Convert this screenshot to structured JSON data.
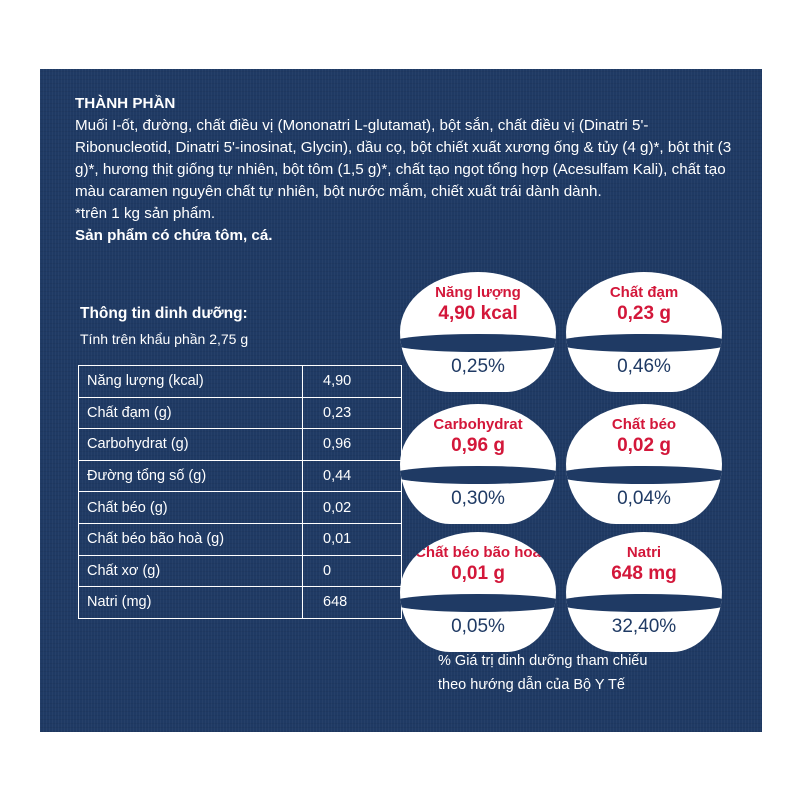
{
  "ingredients": {
    "title": "THÀNH PHẦN",
    "text": "Muối I-ốt, đường, chất điều vị (Mononatri L-glutamat), bột sắn, chất điều vị (Dinatri 5'-Ribonucleotid, Dinatri 5'-inosinat, Glycin), dầu cọ, bột chiết xuất xương ống & tủy (4 g)*, bột thịt (3 g)*, hương thịt giống tự nhiên, bột tôm (1,5 g)*, chất tạo ngọt tổng hợp (Acesulfam Kali), chất tạo màu caramen nguyên chất tự nhiên, bột nước mắm, chiết xuất trái dành dành.",
    "note": "*trên 1 kg sản phẩm.",
    "allergen": "Sản phẩm có chứa tôm, cá."
  },
  "nutrition": {
    "title": "Thông tin dinh dưỡng:",
    "subtitle": "Tính trên khẩu phần 2,75 g",
    "rows": [
      {
        "label": "Năng lượng (kcal)",
        "value": "4,90"
      },
      {
        "label": "Chất đạm (g)",
        "value": "0,23"
      },
      {
        "label": "Carbohydrat (g)",
        "value": "0,96"
      },
      {
        "label": "Đường tổng số (g)",
        "value": "0,44"
      },
      {
        "label": "Chất béo (g)",
        "value": "0,02"
      },
      {
        "label": "Chất béo bão hoà (g)",
        "value": "0,01"
      },
      {
        "label": "Chất xơ (g)",
        "value": "0"
      },
      {
        "label": "Natri (mg)",
        "value": "648"
      }
    ]
  },
  "daily_values": [
    {
      "label": "Năng lượng",
      "amount": "4,90 kcal",
      "percent": "0,25%"
    },
    {
      "label": "Chất đạm",
      "amount": "0,23 g",
      "percent": "0,46%"
    },
    {
      "label": "Carbohydrat",
      "amount": "0,96 g",
      "percent": "0,30%"
    },
    {
      "label": "Chất béo",
      "amount": "0,02 g",
      "percent": "0,04%"
    },
    {
      "label": "Chất béo bão hoà",
      "amount": "0,01 g",
      "percent": "0,05%"
    },
    {
      "label": "Natri",
      "amount": "648 mg",
      "percent": "32,40%"
    }
  ],
  "footnote": {
    "line1": "% Giá trị dinh dưỡng tham chiếu",
    "line2": "theo hướng dẫn của Bộ Y Tế"
  },
  "colors": {
    "panel": "#1f3a64",
    "accent": "#d3173a"
  }
}
